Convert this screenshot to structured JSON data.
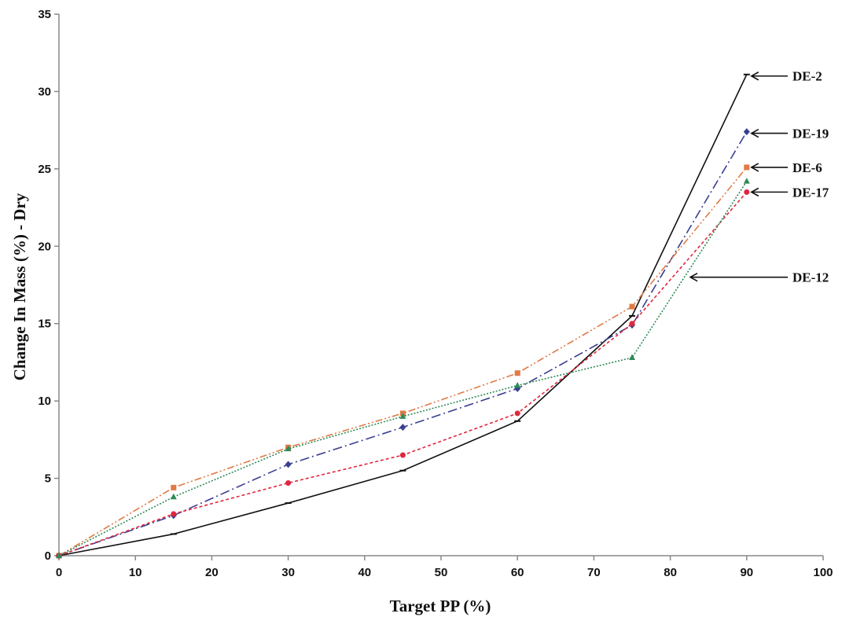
{
  "chart_data": {
    "type": "line",
    "title": "",
    "xlabel": "Target PP (%)",
    "ylabel": "Change In Mass (%) - Dry",
    "xlim": [
      0,
      100
    ],
    "ylim": [
      0,
      35
    ],
    "xticks": [
      0,
      10,
      20,
      30,
      40,
      50,
      60,
      70,
      80,
      90,
      100
    ],
    "yticks": [
      0,
      5,
      10,
      15,
      20,
      25,
      30,
      35
    ],
    "grid": false,
    "legend": "none",
    "x": [
      0,
      15,
      30,
      45,
      60,
      75,
      90
    ],
    "series": [
      {
        "name": "DE-2",
        "color": "#111111",
        "dash": "",
        "marker": "dash",
        "values": [
          0,
          1.4,
          3.4,
          5.5,
          8.7,
          15.5,
          31.1
        ]
      },
      {
        "name": "DE-19",
        "color": "#3a3f8f",
        "dash": "12 4 2 4",
        "marker": "diamond",
        "values": [
          0,
          2.6,
          5.9,
          8.3,
          10.8,
          14.9,
          27.4
        ]
      },
      {
        "name": "DE-6",
        "color": "#e07a45",
        "dash": "9 3 2 3 2 3",
        "marker": "square",
        "values": [
          0,
          4.4,
          7.0,
          9.2,
          11.8,
          16.1,
          25.1
        ]
      },
      {
        "name": "DE-17",
        "color": "#e0263e",
        "dash": "4 3",
        "marker": "circle",
        "values": [
          0,
          2.7,
          4.7,
          6.5,
          9.2,
          15.0,
          23.5
        ]
      },
      {
        "name": "DE-12",
        "color": "#2e8b57",
        "dash": "2 2",
        "marker": "triangle",
        "values": [
          0,
          3.8,
          6.9,
          9.0,
          11.0,
          12.8,
          24.2
        ]
      }
    ],
    "annotations": [
      {
        "text": "DE-2",
        "target_x": 90,
        "target_y": 31.0
      },
      {
        "text": "DE-19",
        "target_x": 90,
        "target_y": 27.3
      },
      {
        "text": "DE-6",
        "target_x": 90,
        "target_y": 25.1
      },
      {
        "text": "DE-17",
        "target_x": 90,
        "target_y": 23.5
      },
      {
        "text": "DE-12",
        "target_x": 82,
        "target_y": 18.0
      }
    ]
  }
}
